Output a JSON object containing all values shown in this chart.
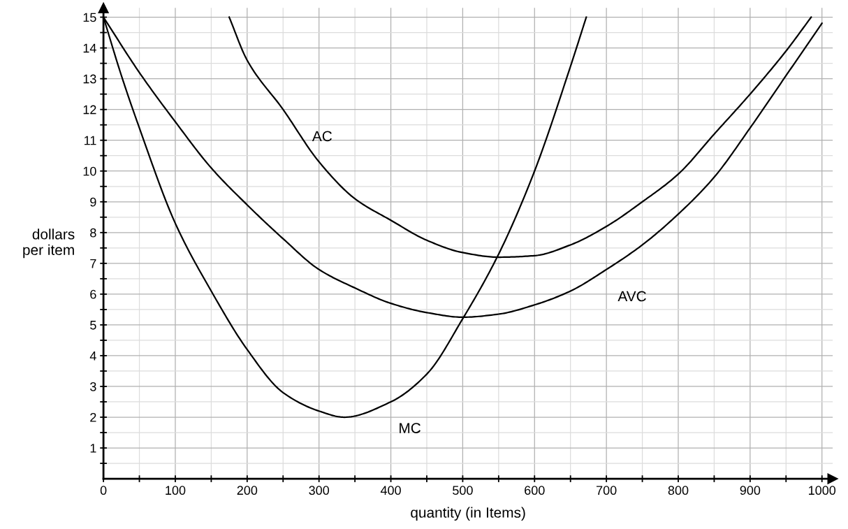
{
  "chart_data": {
    "type": "line",
    "xlabel": "quantity (in Items)",
    "ylabel": "dollars\nper item",
    "series": [
      {
        "name": "MC",
        "color": "#000000",
        "x": [
          0,
          25,
          50,
          100,
          150,
          200,
          250,
          300,
          335,
          400,
          450,
          500,
          550,
          600,
          650,
          672
        ],
        "values": [
          15,
          13.1,
          11.4,
          8.3,
          6.1,
          4.2,
          2.8,
          2.2,
          2.0,
          2.5,
          3.4,
          5.2,
          7.3,
          10.0,
          13.4,
          15
        ]
      },
      {
        "name": "AVC",
        "color": "#000000",
        "x": [
          0,
          50,
          100,
          150,
          200,
          250,
          300,
          350,
          400,
          450,
          500,
          550,
          600,
          650,
          700,
          750,
          800,
          850,
          900,
          950,
          1000
        ],
        "values": [
          15,
          13.2,
          11.6,
          10.1,
          8.9,
          7.8,
          6.8,
          6.2,
          5.7,
          5.4,
          5.25,
          5.35,
          5.65,
          6.1,
          6.8,
          7.6,
          8.6,
          9.8,
          11.4,
          13.1,
          14.8
        ]
      },
      {
        "name": "AC",
        "color": "#000000",
        "x": [
          175,
          200,
          250,
          300,
          350,
          400,
          450,
          500,
          550,
          600,
          650,
          700,
          750,
          800,
          850,
          900,
          950,
          985
        ],
        "values": [
          15,
          13.6,
          12.0,
          10.3,
          9.1,
          8.4,
          7.75,
          7.35,
          7.2,
          7.25,
          7.6,
          8.2,
          9.0,
          9.9,
          11.2,
          12.5,
          13.9,
          15
        ]
      }
    ],
    "xlim": [
      0,
      1015
    ],
    "ylim": [
      0,
      15.3
    ],
    "xticks": [
      0,
      {
        "value": 50,
        "label": null
      },
      100,
      {
        "value": 150,
        "label": null
      },
      200,
      {
        "value": 250,
        "label": null
      },
      300,
      {
        "value": 350,
        "label": null
      },
      400,
      {
        "value": 450,
        "label": null
      },
      500,
      {
        "value": 550,
        "label": null
      },
      600,
      {
        "value": 650,
        "label": null
      },
      700,
      {
        "value": 750,
        "label": null
      },
      800,
      {
        "value": 850,
        "label": null
      },
      900,
      {
        "value": 950,
        "label": null
      },
      1000
    ],
    "yticks": [
      {
        "value": 0.5,
        "label": null
      },
      1,
      {
        "value": 1.5,
        "label": null
      },
      2,
      {
        "value": 2.5,
        "label": null
      },
      3,
      {
        "value": 3.5,
        "label": null
      },
      4,
      {
        "value": 4.5,
        "label": null
      },
      5,
      {
        "value": 5.5,
        "label": null
      },
      6,
      {
        "value": 6.5,
        "label": null
      },
      7,
      {
        "value": 7.5,
        "label": null
      },
      8,
      {
        "value": 8.5,
        "label": null
      },
      9,
      {
        "value": 9.5,
        "label": null
      },
      10,
      {
        "value": 10.5,
        "label": null
      },
      11,
      {
        "value": 11.5,
        "label": null
      },
      12,
      {
        "value": 12.5,
        "label": null
      },
      13,
      {
        "value": 13.5,
        "label": null
      },
      14,
      {
        "value": 14.5,
        "label": null
      },
      15
    ],
    "grid": true,
    "line_style": "solid",
    "marker": "none"
  }
}
